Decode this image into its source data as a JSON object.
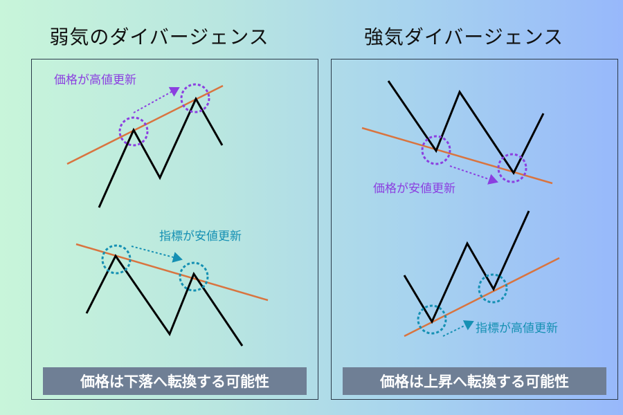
{
  "left": {
    "title": "弱気のダイバージェンス",
    "top_label": "価格が高値更新",
    "bottom_label": "指標が安値更新",
    "conclusion": "価格は下落へ転換する可能性"
  },
  "right": {
    "title": "強気ダイバージェンス",
    "top_label": "価格が安値更新",
    "bottom_label": "指標が高値更新",
    "conclusion": "価格は上昇へ転換する可能性"
  },
  "colors": {
    "price_label": "#8b3fe0",
    "indicator_label": "#1590b3",
    "trendline": "#d9743f",
    "line": "#000000",
    "footer": "#6f7f95"
  }
}
